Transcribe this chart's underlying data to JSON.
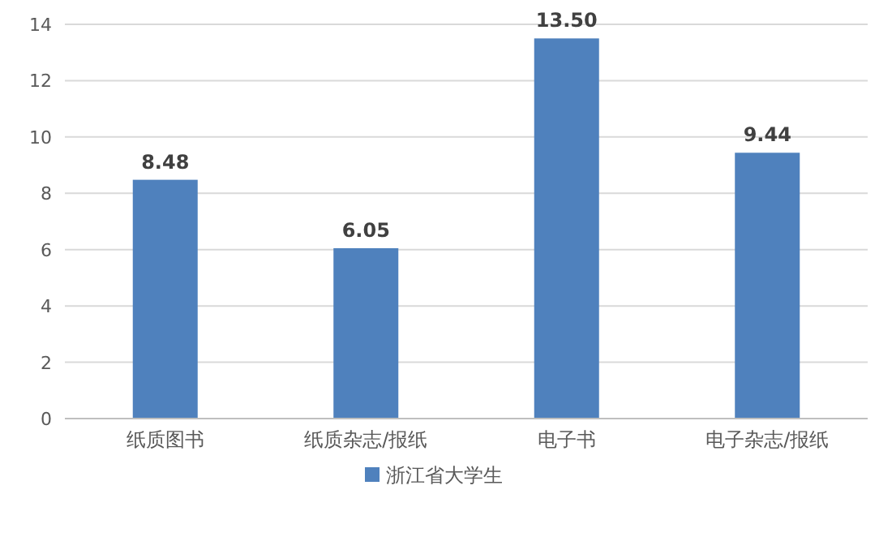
{
  "chart_data": {
    "type": "bar",
    "categories": [
      "纸质图书",
      "纸质杂志/报纸",
      "电子书",
      "电子杂志/报纸"
    ],
    "series": [
      {
        "name": "浙江省大学生",
        "color": "#4f81bd",
        "values": [
          8.48,
          6.05,
          13.5,
          9.44
        ],
        "value_labels": [
          "8.48",
          "6.05",
          "13.50",
          "9.44"
        ]
      }
    ],
    "ylim": [
      0,
      14
    ],
    "yticks": [
      0,
      2,
      4,
      6,
      8,
      10,
      12,
      14
    ],
    "grid": "y",
    "legend": "bottom"
  }
}
